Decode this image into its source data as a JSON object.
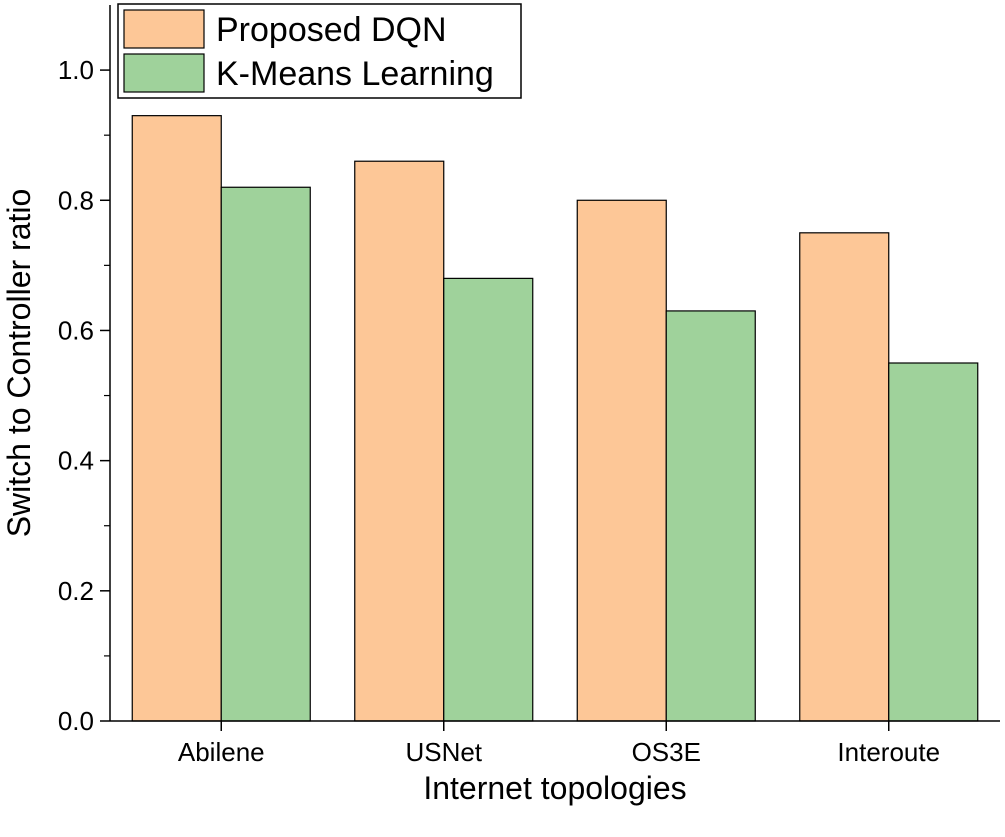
{
  "chart_data": {
    "type": "bar",
    "categories": [
      "Abilene",
      "USNet",
      "OS3E",
      "Interoute"
    ],
    "series": [
      {
        "name": "Proposed DQN",
        "values": [
          0.93,
          0.86,
          0.8,
          0.75
        ],
        "color": "#fdc797"
      },
      {
        "name": "K-Means Learning",
        "values": [
          0.82,
          0.68,
          0.63,
          0.55
        ],
        "color": "#9fd29b"
      }
    ],
    "xlabel": "Internet topologies",
    "ylabel": "Switch to Controller ratio",
    "ylim": [
      0,
      1.1
    ],
    "yticks": [
      "0.0",
      "0.2",
      "0.4",
      "0.6",
      "0.8",
      "1.0"
    ],
    "legend_position": "top-left",
    "grid": false
  }
}
